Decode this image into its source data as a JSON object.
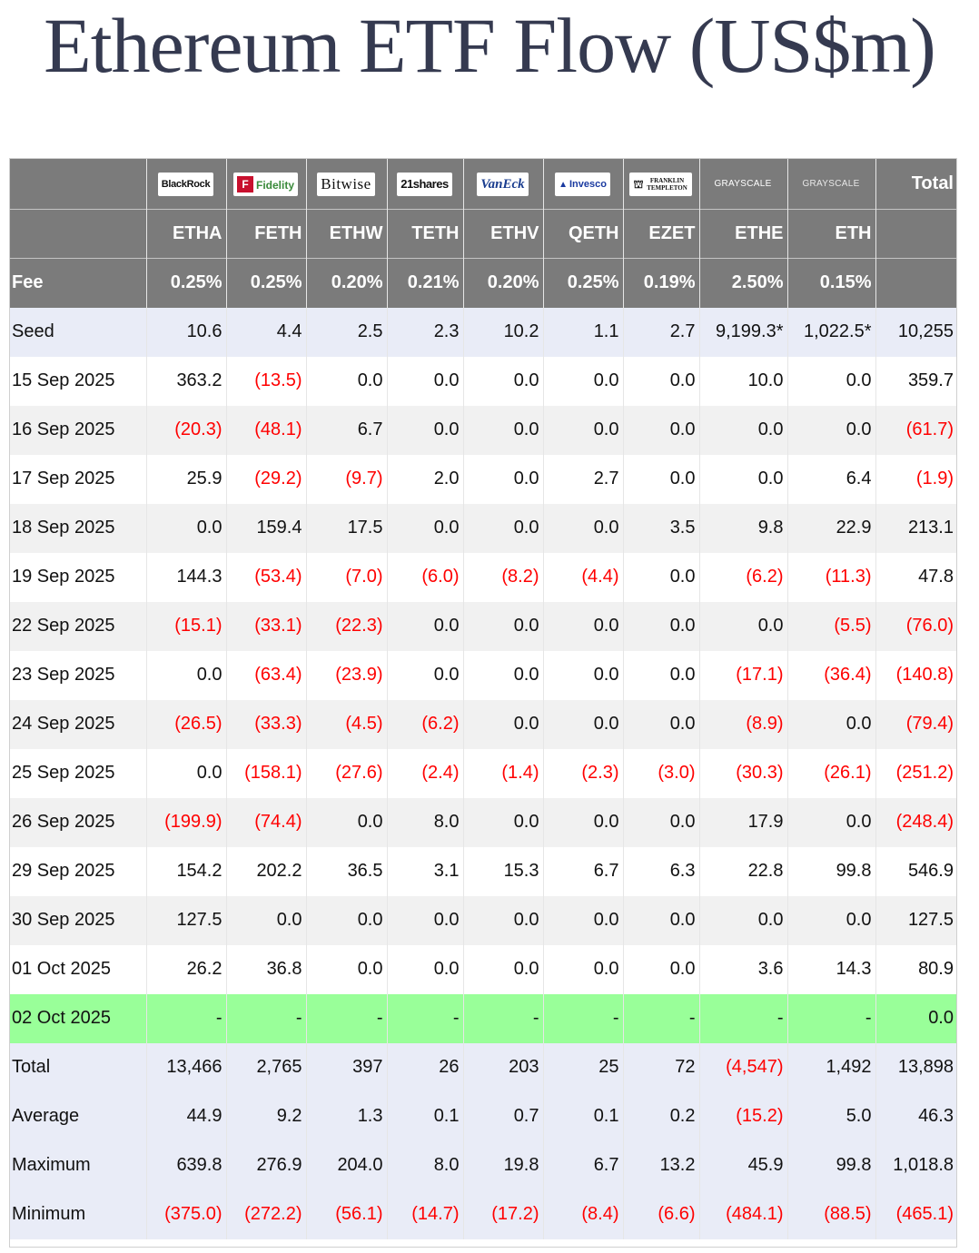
{
  "title": "Ethereum ETF Flow (US$m)",
  "issuers": [
    {
      "name": "BlackRock",
      "icon": "blackrock-logo"
    },
    {
      "name": "Fidelity",
      "icon": "fidelity-logo"
    },
    {
      "name": "Bitwise",
      "icon": "bitwise-logo"
    },
    {
      "name": "21shares",
      "icon": "21shares-logo"
    },
    {
      "name": "VanEck",
      "icon": "vaneck-logo"
    },
    {
      "name": "Invesco",
      "icon": "invesco-logo"
    },
    {
      "name": "FRANKLIN TEMPLETON",
      "icon": "franklin-templeton-logo"
    },
    {
      "name": "GRAYSCALE",
      "icon": "grayscale-logo"
    },
    {
      "name": "GRAYSCALE",
      "icon": "grayscale-logo"
    }
  ],
  "header": {
    "total_label": "Total",
    "fee_label": "Fee"
  },
  "tickers": [
    "ETHA",
    "FETH",
    "ETHW",
    "TETH",
    "ETHV",
    "QETH",
    "EZET",
    "ETHE",
    "ETH"
  ],
  "fees": [
    "0.25%",
    "0.25%",
    "0.20%",
    "0.21%",
    "0.20%",
    "0.25%",
    "0.19%",
    "2.50%",
    "0.15%"
  ],
  "rows": [
    {
      "label": "Seed",
      "style": "seed",
      "cells": [
        "10.6",
        "4.4",
        "2.5",
        "2.3",
        "10.2",
        "1.1",
        "2.7",
        "9,199.3*",
        "1,022.5*",
        "10,255"
      ]
    },
    {
      "label": "15 Sep 2025",
      "style": "plain",
      "cells": [
        "363.2",
        "(13.5)",
        "0.0",
        "0.0",
        "0.0",
        "0.0",
        "0.0",
        "10.0",
        "0.0",
        "359.7"
      ]
    },
    {
      "label": "16 Sep 2025",
      "style": "alt",
      "cells": [
        "(20.3)",
        "(48.1)",
        "6.7",
        "0.0",
        "0.0",
        "0.0",
        "0.0",
        "0.0",
        "0.0",
        "(61.7)"
      ]
    },
    {
      "label": "17 Sep 2025",
      "style": "plain",
      "cells": [
        "25.9",
        "(29.2)",
        "(9.7)",
        "2.0",
        "0.0",
        "2.7",
        "0.0",
        "0.0",
        "6.4",
        "(1.9)"
      ]
    },
    {
      "label": "18 Sep 2025",
      "style": "alt",
      "cells": [
        "0.0",
        "159.4",
        "17.5",
        "0.0",
        "0.0",
        "0.0",
        "3.5",
        "9.8",
        "22.9",
        "213.1"
      ]
    },
    {
      "label": "19 Sep 2025",
      "style": "plain",
      "cells": [
        "144.3",
        "(53.4)",
        "(7.0)",
        "(6.0)",
        "(8.2)",
        "(4.4)",
        "0.0",
        "(6.2)",
        "(11.3)",
        "47.8"
      ]
    },
    {
      "label": "22 Sep 2025",
      "style": "alt",
      "cells": [
        "(15.1)",
        "(33.1)",
        "(22.3)",
        "0.0",
        "0.0",
        "0.0",
        "0.0",
        "0.0",
        "(5.5)",
        "(76.0)"
      ]
    },
    {
      "label": "23 Sep 2025",
      "style": "plain",
      "cells": [
        "0.0",
        "(63.4)",
        "(23.9)",
        "0.0",
        "0.0",
        "0.0",
        "0.0",
        "(17.1)",
        "(36.4)",
        "(140.8)"
      ]
    },
    {
      "label": "24 Sep 2025",
      "style": "alt",
      "cells": [
        "(26.5)",
        "(33.3)",
        "(4.5)",
        "(6.2)",
        "0.0",
        "0.0",
        "0.0",
        "(8.9)",
        "0.0",
        "(79.4)"
      ]
    },
    {
      "label": "25 Sep 2025",
      "style": "plain",
      "cells": [
        "0.0",
        "(158.1)",
        "(27.6)",
        "(2.4)",
        "(1.4)",
        "(2.3)",
        "(3.0)",
        "(30.3)",
        "(26.1)",
        "(251.2)"
      ]
    },
    {
      "label": "26 Sep 2025",
      "style": "alt",
      "cells": [
        "(199.9)",
        "(74.4)",
        "0.0",
        "8.0",
        "0.0",
        "0.0",
        "0.0",
        "17.9",
        "0.0",
        "(248.4)"
      ]
    },
    {
      "label": "29 Sep 2025",
      "style": "plain",
      "cells": [
        "154.2",
        "202.2",
        "36.5",
        "3.1",
        "15.3",
        "6.7",
        "6.3",
        "22.8",
        "99.8",
        "546.9"
      ]
    },
    {
      "label": "30 Sep 2025",
      "style": "alt",
      "cells": [
        "127.5",
        "0.0",
        "0.0",
        "0.0",
        "0.0",
        "0.0",
        "0.0",
        "0.0",
        "0.0",
        "127.5"
      ]
    },
    {
      "label": "01 Oct 2025",
      "style": "plain",
      "cells": [
        "26.2",
        "36.8",
        "0.0",
        "0.0",
        "0.0",
        "0.0",
        "0.0",
        "3.6",
        "14.3",
        "80.9"
      ]
    },
    {
      "label": "02 Oct 2025",
      "style": "today",
      "cells": [
        "-",
        "-",
        "-",
        "-",
        "-",
        "-",
        "-",
        "-",
        "-",
        "0.0"
      ]
    },
    {
      "label": "Total",
      "style": "stat",
      "cells": [
        "13,466",
        "2,765",
        "397",
        "26",
        "203",
        "25",
        "72",
        "(4,547)",
        "1,492",
        "13,898"
      ]
    },
    {
      "label": "Average",
      "style": "stat",
      "cells": [
        "44.9",
        "9.2",
        "1.3",
        "0.1",
        "0.7",
        "0.1",
        "0.2",
        "(15.2)",
        "5.0",
        "46.3"
      ]
    },
    {
      "label": "Maximum",
      "style": "stat",
      "cells": [
        "639.8",
        "276.9",
        "204.0",
        "8.0",
        "19.8",
        "6.7",
        "13.2",
        "45.9",
        "99.8",
        "1,018.8"
      ]
    },
    {
      "label": "Minimum",
      "style": "stat",
      "cells": [
        "(375.0)",
        "(272.2)",
        "(56.1)",
        "(14.7)",
        "(17.2)",
        "(8.4)",
        "(6.6)",
        "(484.1)",
        "(88.5)",
        "(465.1)"
      ]
    }
  ],
  "colors": {
    "header_bg": "#7b7b7b",
    "negative": "#ff0000",
    "today_bg": "#99ff99",
    "summary_bg": "#e9ecf7",
    "title": "#353a50"
  }
}
